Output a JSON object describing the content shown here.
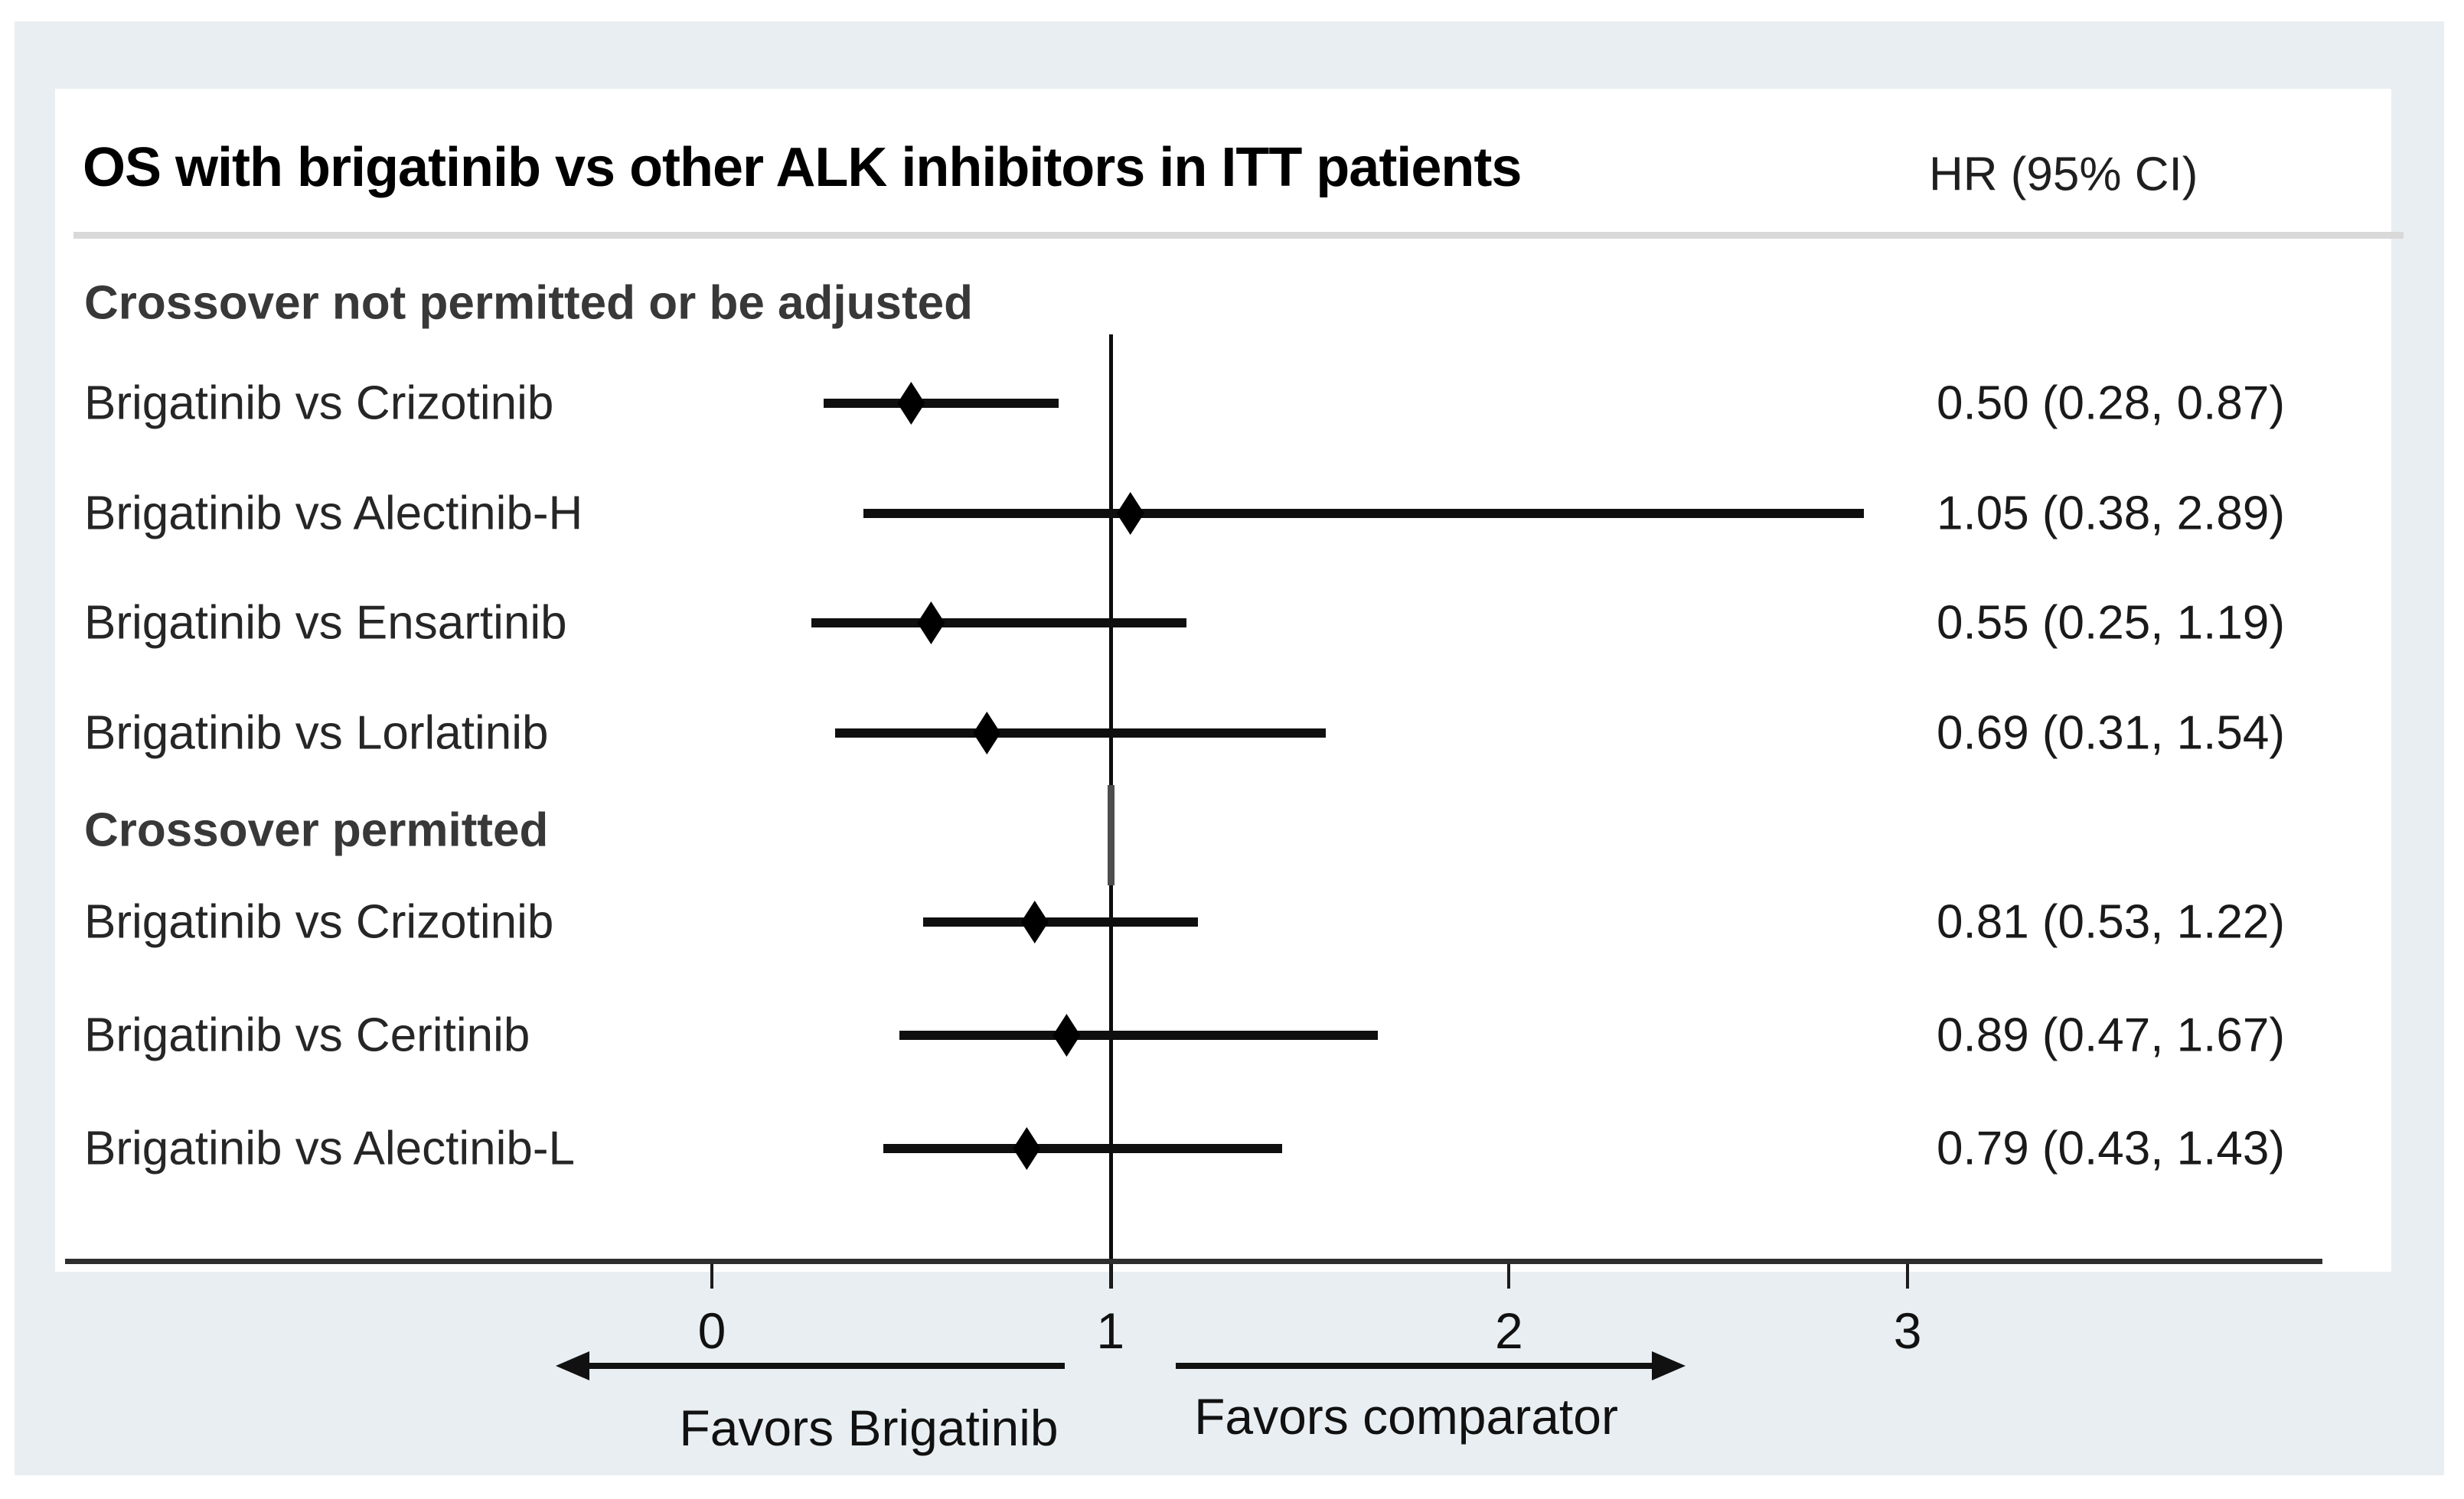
{
  "chart_data": {
    "type": "forest",
    "title": "OS with brigatinib vs other ALK inhibitors in ITT patients",
    "effect_header": "HR (95% CI)",
    "x_axis": {
      "tick_labels": [
        "0",
        "1",
        "2",
        "3"
      ],
      "tick_values": [
        0,
        1,
        2,
        3
      ],
      "reference_value": 1,
      "xlim": [
        -1.6,
        4.0
      ],
      "grid": false
    },
    "favors": {
      "left": "Favors Brigatinib",
      "right": "Favors comparator"
    },
    "groups": [
      {
        "header": "Crossover not permitted or be adjusted",
        "rows": [
          {
            "label": "Brigatinib vs Crizotinib",
            "hr": 0.5,
            "ci_low": 0.28,
            "ci_high": 0.87,
            "display": "0.50 (0.28, 0.87)"
          },
          {
            "label": "Brigatinib vs Alectinib-H",
            "hr": 1.05,
            "ci_low": 0.38,
            "ci_high": 2.89,
            "display": "1.05 (0.38, 2.89)"
          },
          {
            "label": "Brigatinib vs Ensartinib",
            "hr": 0.55,
            "ci_low": 0.25,
            "ci_high": 1.19,
            "display": "0.55 (0.25, 1.19)"
          },
          {
            "label": "Brigatinib vs Lorlatinib",
            "hr": 0.69,
            "ci_low": 0.31,
            "ci_high": 1.54,
            "display": "0.69 (0.31, 1.54)"
          }
        ]
      },
      {
        "header": "Crossover permitted",
        "rows": [
          {
            "label": "Brigatinib vs Crizotinib",
            "hr": 0.81,
            "ci_low": 0.53,
            "ci_high": 1.22,
            "display": "0.81 (0.53, 1.22)"
          },
          {
            "label": "Brigatinib vs Ceritinib",
            "hr": 0.89,
            "ci_low": 0.47,
            "ci_high": 1.67,
            "display": "0.89 (0.47, 1.67)"
          },
          {
            "label": "Brigatinib vs Alectinib-L",
            "hr": 0.79,
            "ci_low": 0.43,
            "ci_high": 1.43,
            "display": "0.79 (0.43, 1.43)"
          }
        ]
      }
    ],
    "colors": {
      "marker": "#000000",
      "ci_line": "#0f0f0f",
      "reference_line": "#0d0d0d",
      "axis": "#2e2e2e",
      "separator": "#d9d9d9",
      "panel_background": "#e8eef1",
      "card_background": "#ffffff"
    },
    "legend_position": "none"
  }
}
